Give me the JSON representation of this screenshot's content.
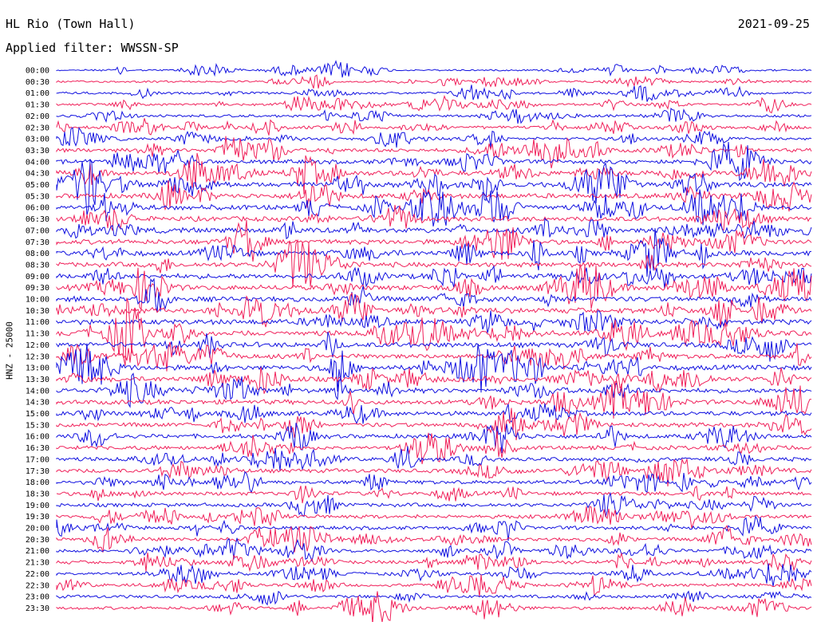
{
  "header": {
    "station": "HL Rio (Town Hall)",
    "date": "2021-09-25",
    "filter": "Applied filter: WWSSN-SP",
    "channel_label": "HNZ - 25000"
  },
  "chart_data": {
    "type": "line",
    "title": "HL Rio (Town Hall)",
    "subtitle": "Applied filter: WWSSN-SP",
    "ylabel": "HNZ - 25000",
    "date": "2021-09-25",
    "rows": [
      "00:00",
      "00:30",
      "01:00",
      "01:30",
      "02:00",
      "02:30",
      "03:00",
      "03:30",
      "04:00",
      "04:30",
      "05:00",
      "05:30",
      "06:00",
      "06:30",
      "07:00",
      "07:30",
      "08:00",
      "08:30",
      "09:00",
      "09:30",
      "10:00",
      "10:30",
      "11:00",
      "11:30",
      "12:00",
      "12:30",
      "13:00",
      "13:30",
      "14:00",
      "14:30",
      "15:00",
      "15:30",
      "16:00",
      "16:30",
      "17:00",
      "17:30",
      "18:00",
      "18:30",
      "19:00",
      "19:30",
      "20:00",
      "20:30",
      "21:00",
      "21:30",
      "22:00",
      "22:30",
      "23:00",
      "23:30"
    ],
    "row_amplitude": [
      1.2,
      1.4,
      1.6,
      1.6,
      1.8,
      2.0,
      2.3,
      2.6,
      3.0,
      3.4,
      3.6,
      3.5,
      3.6,
      3.4,
      3.5,
      3.4,
      3.5,
      3.4,
      3.6,
      3.6,
      3.6,
      3.7,
      3.7,
      3.8,
      3.6,
      3.5,
      3.6,
      3.5,
      3.4,
      3.3,
      3.2,
      3.0,
      3.0,
      2.9,
      2.8,
      2.8,
      2.7,
      2.7,
      2.7,
      2.6,
      2.6,
      2.5,
      2.4,
      2.4,
      2.3,
      2.2,
      2.2,
      2.1
    ],
    "colors": [
      "#1010e0",
      "#f0205a"
    ],
    "grid": false
  }
}
